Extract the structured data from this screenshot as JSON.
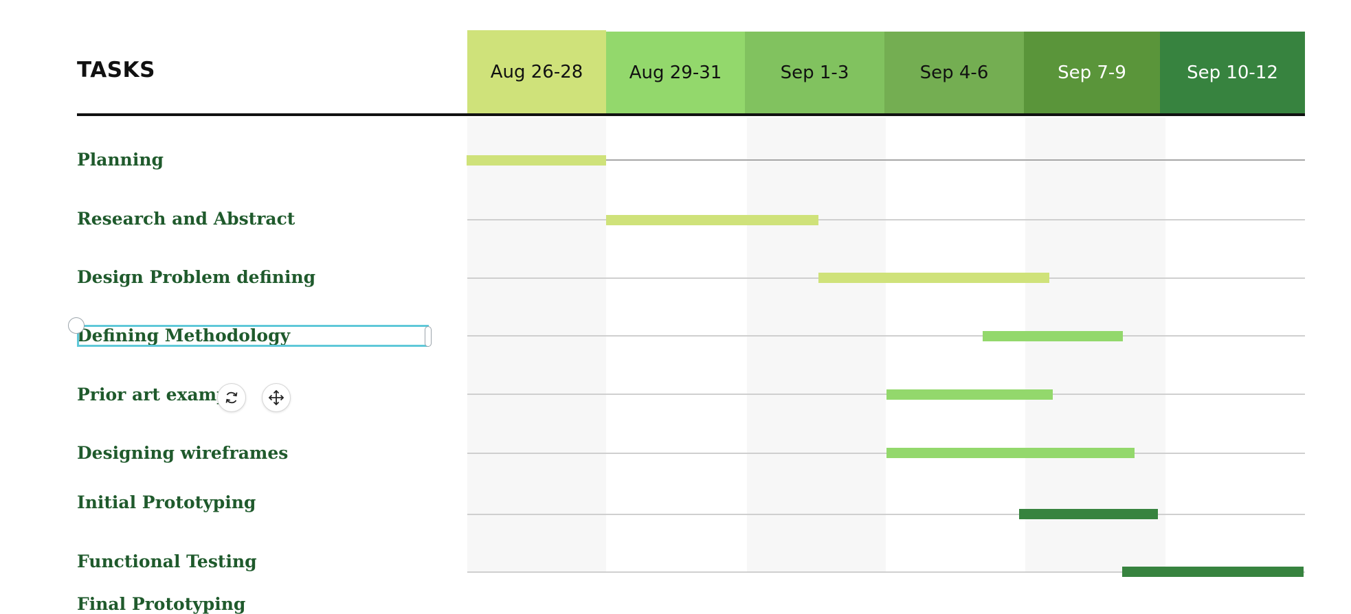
{
  "board": {
    "tasks_header": "TASKS"
  },
  "columns": [
    {
      "label": "Aug 26-28",
      "bg": "#cfe27a",
      "fg": "#111111"
    },
    {
      "label": "Aug 29-31",
      "bg": "#93d86c",
      "fg": "#111111"
    },
    {
      "label": "Sep 1-3",
      "bg": "#81c25f",
      "fg": "#111111"
    },
    {
      "label": "Sep 4-6",
      "bg": "#74ae52",
      "fg": "#111111"
    },
    {
      "label": "Sep 7-9",
      "bg": "#5a953a",
      "fg": "#ffffff"
    },
    {
      "label": "Sep 10-12",
      "bg": "#37833f",
      "fg": "#ffffff"
    }
  ],
  "tasks": [
    {
      "label": "Planning",
      "bar_color": "#cfe27a"
    },
    {
      "label": "Research and Abstract",
      "bar_color": "#cfe27a"
    },
    {
      "label": "Design Problem defining",
      "bar_color": "#cfe27a"
    },
    {
      "label": "Defining Methodology",
      "bar_color": "#93d86c"
    },
    {
      "label": "Prior art exampl",
      "bar_color": "#93d86c"
    },
    {
      "label": "Designing wireframes",
      "bar_color": "#93d86c"
    },
    {
      "label": "Initial Prototyping",
      "bar_color": "#37833f"
    },
    {
      "label": "Functional Testing",
      "bar_color": "#37833f"
    },
    {
      "label": "Final Prototyping",
      "bar_color": ""
    }
  ],
  "toolbar": {
    "rotate_icon": "rotate-icon",
    "move_icon": "move-icon"
  }
}
